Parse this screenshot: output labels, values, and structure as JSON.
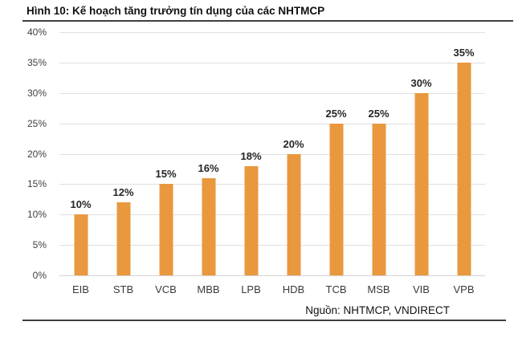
{
  "header": {
    "title": "Hình 10: Kế hoạch tăng trưởng tín dụng của các NHTMCP"
  },
  "footer": {
    "source": "Nguồn: NHTMCP, VNDIRECT"
  },
  "chart_data": {
    "type": "bar",
    "title": "Hình 10: Kế hoạch tăng trưởng tín dụng của các NHTMCP",
    "categories": [
      "EIB",
      "STB",
      "VCB",
      "MBB",
      "LPB",
      "HDB",
      "TCB",
      "MSB",
      "VIB",
      "VPB"
    ],
    "values": [
      10,
      12,
      15,
      16,
      18,
      20,
      25,
      25,
      30,
      35
    ],
    "value_labels": [
      "10%",
      "12%",
      "15%",
      "16%",
      "18%",
      "20%",
      "25%",
      "25%",
      "30%",
      "35%"
    ],
    "xlabel": "",
    "ylabel": "",
    "ylim": [
      0,
      40
    ],
    "ytick_step": 5,
    "ytick_suffix": "%",
    "grid": true,
    "legend": false,
    "bar_color": "#E9983E",
    "gridline_color": "#e0e0e0",
    "source": "Nguồn: NHTMCP, VNDIRECT"
  }
}
